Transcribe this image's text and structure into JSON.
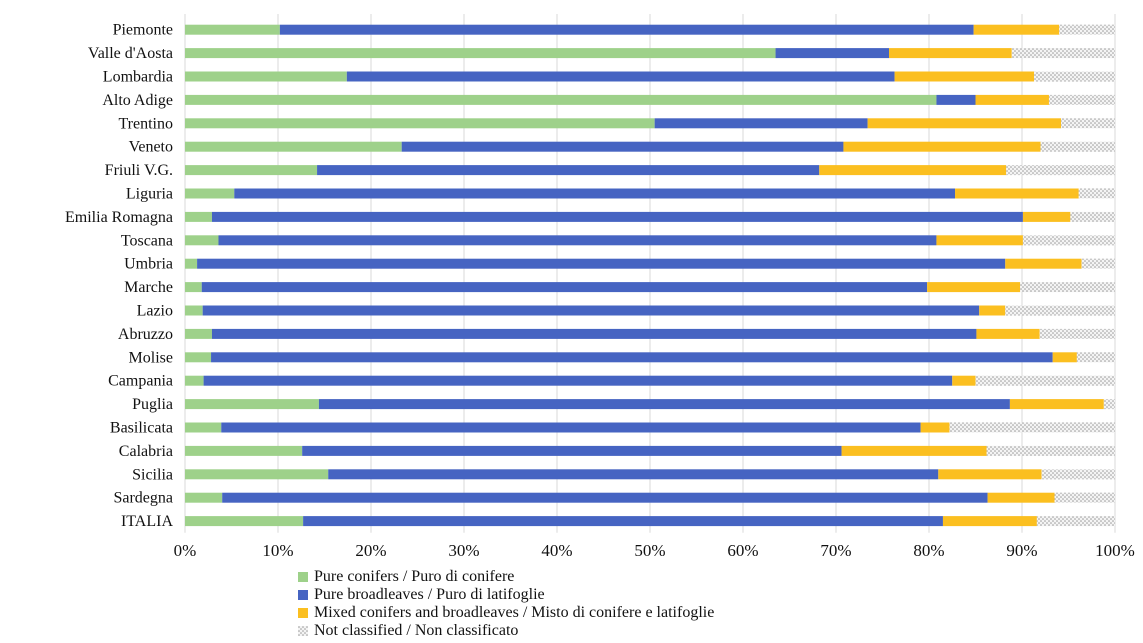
{
  "chart_data": {
    "type": "bar",
    "orientation": "horizontal",
    "stacked": true,
    "percent": true,
    "categories": [
      "Piemonte",
      "Valle d'Aosta",
      "Lombardia",
      "Alto Adige",
      "Trentino",
      "Veneto",
      "Friuli V.G.",
      "Liguria",
      "Emilia Romagna",
      "Toscana",
      "Umbria",
      "Marche",
      "Lazio",
      "Abruzzo",
      "Molise",
      "Campania",
      "Puglia",
      "Basilicata",
      "Calabria",
      "Sicilia",
      "Sardegna",
      "ITALIA"
    ],
    "series": [
      {
        "name": "Pure conifers / Puro di conifere",
        "color": "#9ed18a",
        "values": [
          10.2,
          63.5,
          17.4,
          80.8,
          50.5,
          23.3,
          14.2,
          5.3,
          2.9,
          3.6,
          1.3,
          1.8,
          1.9,
          2.9,
          2.8,
          2.0,
          14.4,
          3.9,
          12.6,
          15.4,
          4.0,
          12.7
        ]
      },
      {
        "name": "Pure broadleaves / Puro di latifoglie",
        "color": "#4664c2",
        "values": [
          74.6,
          12.2,
          58.9,
          4.2,
          22.9,
          47.5,
          54.0,
          77.5,
          87.2,
          77.2,
          86.9,
          78.0,
          83.5,
          82.2,
          90.5,
          80.5,
          74.3,
          75.2,
          58.0,
          65.6,
          82.3,
          68.8
        ]
      },
      {
        "name": "Mixed conifers and broadleaves / Misto di conifere e latifoglie",
        "color": "#fbbf20",
        "values": [
          9.2,
          13.2,
          15.0,
          7.9,
          20.8,
          21.2,
          20.1,
          13.3,
          5.1,
          9.3,
          8.2,
          10.0,
          2.8,
          6.8,
          2.6,
          2.5,
          10.1,
          3.1,
          15.6,
          11.1,
          7.2,
          10.1
        ]
      },
      {
        "name": "Not classified / Non classificato",
        "color": "#e8e8e8",
        "values": [
          6.0,
          11.1,
          8.7,
          7.1,
          5.8,
          8.0,
          11.7,
          3.9,
          4.8,
          9.9,
          3.6,
          10.2,
          11.8,
          8.1,
          4.1,
          15.0,
          1.2,
          17.8,
          13.8,
          7.9,
          6.5,
          8.4
        ]
      }
    ],
    "x_ticks": [
      "0%",
      "10%",
      "20%",
      "30%",
      "40%",
      "50%",
      "60%",
      "70%",
      "80%",
      "90%",
      "100%"
    ],
    "xlim": [
      0,
      100
    ],
    "grid": "vertical",
    "legend_position": "bottom"
  }
}
